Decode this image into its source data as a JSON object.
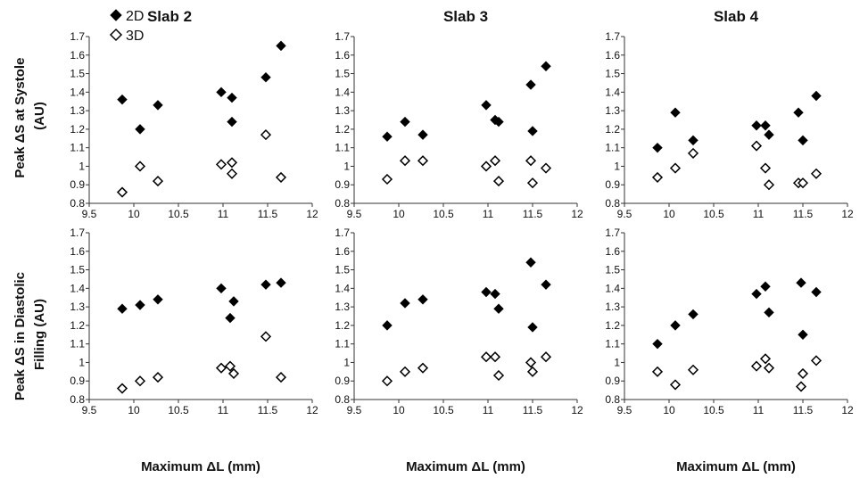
{
  "legend": {
    "placement": "top-left",
    "entries": [
      {
        "label": "2D",
        "marker": "filled-diamond"
      },
      {
        "label": "3D",
        "marker": "open-diamond"
      }
    ]
  },
  "row_labels": [
    [
      "Peak ΔS at Systole",
      "(AU)"
    ],
    [
      "Peak ΔS in Diastolic",
      "Filling (AU)"
    ]
  ],
  "shared_x_label": "Maximum ΔL (mm)",
  "chart_data": [
    {
      "type": "scatter",
      "title": "Slab 2",
      "row": 0,
      "col": 0,
      "xlabel": "",
      "xlim": [
        9.5,
        12
      ],
      "ylim": [
        0.8,
        1.7
      ],
      "xticks": [
        "9.5",
        "10",
        "10.5",
        "11",
        "11.5",
        "12"
      ],
      "yticks": [
        "0.8",
        "0.9",
        "1",
        "1.1",
        "1.2",
        "1.3",
        "1.4",
        "1.5",
        "1.6",
        "1.7"
      ],
      "series": [
        {
          "name": "2D",
          "x": [
            9.87,
            10.07,
            10.27,
            10.98,
            11.1,
            11.1,
            11.48,
            11.65
          ],
          "y": [
            1.36,
            1.2,
            1.33,
            1.4,
            1.37,
            1.24,
            1.48,
            1.65
          ]
        },
        {
          "name": "3D",
          "x": [
            9.87,
            10.07,
            10.27,
            10.98,
            11.1,
            11.1,
            11.48,
            11.65
          ],
          "y": [
            0.86,
            1.0,
            0.92,
            1.01,
            1.02,
            0.96,
            1.17,
            0.94
          ]
        }
      ]
    },
    {
      "type": "scatter",
      "title": "Slab 3",
      "row": 0,
      "col": 1,
      "xlabel": "",
      "xlim": [
        9.5,
        12
      ],
      "ylim": [
        0.8,
        1.7
      ],
      "xticks": [
        "9.5",
        "10",
        "10.5",
        "11",
        "11.5",
        "12"
      ],
      "yticks": [
        "0.8",
        "0.9",
        "1",
        "1.1",
        "1.2",
        "1.3",
        "1.4",
        "1.5",
        "1.6",
        "1.7"
      ],
      "series": [
        {
          "name": "2D",
          "x": [
            9.87,
            10.07,
            10.27,
            10.98,
            11.08,
            11.12,
            11.48,
            11.5,
            11.65
          ],
          "y": [
            1.16,
            1.24,
            1.17,
            1.33,
            1.25,
            1.24,
            1.44,
            1.19,
            1.54
          ]
        },
        {
          "name": "3D",
          "x": [
            9.87,
            10.07,
            10.27,
            10.98,
            11.08,
            11.12,
            11.48,
            11.5,
            11.65
          ],
          "y": [
            0.93,
            1.03,
            1.03,
            1.0,
            1.03,
            0.92,
            1.03,
            0.91,
            0.99
          ]
        }
      ]
    },
    {
      "type": "scatter",
      "title": "Slab 4",
      "row": 0,
      "col": 2,
      "xlabel": "",
      "xlim": [
        9.5,
        12
      ],
      "ylim": [
        0.8,
        1.7
      ],
      "xticks": [
        "9.5",
        "10",
        "10.5",
        "11",
        "11.5",
        "12"
      ],
      "yticks": [
        "0.8",
        "0.9",
        "1",
        "1.1",
        "1.2",
        "1.3",
        "1.4",
        "1.5",
        "1.6",
        "1.7"
      ],
      "series": [
        {
          "name": "2D",
          "x": [
            9.87,
            10.07,
            10.27,
            10.98,
            11.08,
            11.12,
            11.45,
            11.5,
            11.65
          ],
          "y": [
            1.1,
            1.29,
            1.14,
            1.22,
            1.22,
            1.17,
            1.29,
            1.14,
            1.38
          ]
        },
        {
          "name": "3D",
          "x": [
            9.87,
            10.07,
            10.27,
            10.98,
            11.08,
            11.12,
            11.45,
            11.5,
            11.65
          ],
          "y": [
            0.94,
            0.99,
            1.07,
            1.11,
            0.99,
            0.9,
            0.91,
            0.91,
            0.96
          ]
        }
      ]
    },
    {
      "type": "scatter",
      "title": "",
      "row": 1,
      "col": 0,
      "xlabel": "Maximum ΔL (mm)",
      "xlim": [
        9.5,
        12
      ],
      "ylim": [
        0.8,
        1.7
      ],
      "xticks": [
        "9.5",
        "10",
        "10.5",
        "11",
        "11.5",
        "12"
      ],
      "yticks": [
        "0.8",
        "0.9",
        "1",
        "1.1",
        "1.2",
        "1.3",
        "1.4",
        "1.5",
        "1.6",
        "1.7"
      ],
      "series": [
        {
          "name": "2D",
          "x": [
            9.87,
            10.07,
            10.27,
            10.98,
            11.08,
            11.12,
            11.48,
            11.65
          ],
          "y": [
            1.29,
            1.31,
            1.34,
            1.4,
            1.24,
            1.33,
            1.42,
            1.43
          ]
        },
        {
          "name": "3D",
          "x": [
            9.87,
            10.07,
            10.27,
            10.98,
            11.08,
            11.12,
            11.48,
            11.65
          ],
          "y": [
            0.86,
            0.9,
            0.92,
            0.97,
            0.98,
            0.94,
            1.14,
            0.92
          ]
        }
      ]
    },
    {
      "type": "scatter",
      "title": "",
      "row": 1,
      "col": 1,
      "xlabel": "Maximum ΔL (mm)",
      "xlim": [
        9.5,
        12
      ],
      "ylim": [
        0.8,
        1.7
      ],
      "xticks": [
        "9.5",
        "10",
        "10.5",
        "11",
        "11.5",
        "12"
      ],
      "yticks": [
        "0.8",
        "0.9",
        "1",
        "1.1",
        "1.2",
        "1.3",
        "1.4",
        "1.5",
        "1.6",
        "1.7"
      ],
      "series": [
        {
          "name": "2D",
          "x": [
            9.87,
            10.07,
            10.27,
            10.98,
            11.08,
            11.12,
            11.48,
            11.5,
            11.65
          ],
          "y": [
            1.2,
            1.32,
            1.34,
            1.38,
            1.37,
            1.29,
            1.54,
            1.19,
            1.42
          ]
        },
        {
          "name": "3D",
          "x": [
            9.87,
            10.07,
            10.27,
            10.98,
            11.08,
            11.12,
            11.48,
            11.5,
            11.65
          ],
          "y": [
            0.9,
            0.95,
            0.97,
            1.03,
            1.03,
            0.93,
            1.0,
            0.95,
            1.03
          ]
        }
      ]
    },
    {
      "type": "scatter",
      "title": "",
      "row": 1,
      "col": 2,
      "xlabel": "Maximum ΔL (mm)",
      "xlim": [
        9.5,
        12
      ],
      "ylim": [
        0.8,
        1.7
      ],
      "xticks": [
        "9.5",
        "10",
        "10.5",
        "11",
        "11.5",
        "12"
      ],
      "yticks": [
        "0.8",
        "0.9",
        "1",
        "1.1",
        "1.2",
        "1.3",
        "1.4",
        "1.5",
        "1.6",
        "1.7"
      ],
      "series": [
        {
          "name": "2D",
          "x": [
            9.87,
            10.07,
            10.27,
            10.98,
            11.08,
            11.12,
            11.48,
            11.5,
            11.65
          ],
          "y": [
            1.1,
            1.2,
            1.26,
            1.37,
            1.41,
            1.27,
            1.43,
            1.15,
            1.38
          ]
        },
        {
          "name": "3D",
          "x": [
            9.87,
            10.07,
            10.27,
            10.98,
            11.08,
            11.12,
            11.48,
            11.5,
            11.65
          ],
          "y": [
            0.95,
            0.88,
            0.96,
            0.98,
            1.02,
            0.97,
            0.87,
            0.94,
            1.01
          ]
        }
      ]
    }
  ]
}
